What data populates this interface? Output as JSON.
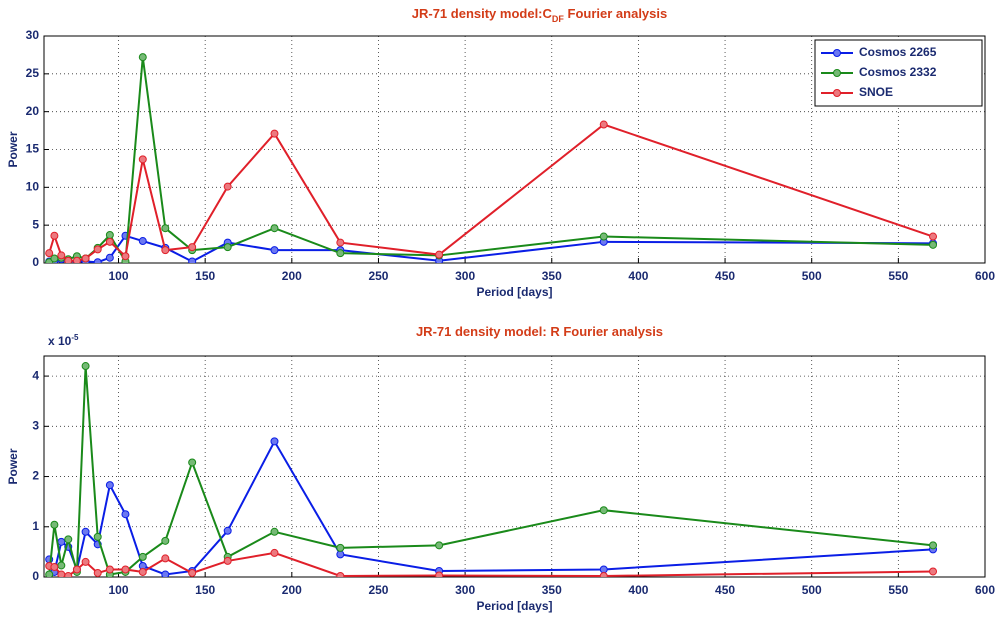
{
  "chart_data": [
    {
      "type": "line",
      "title": "JR-71 density model:C",
      "title_subscript": "DF",
      "title_suffix": " Fourier analysis",
      "xlabel": "Period [days]",
      "ylabel": "Power",
      "x": [
        60,
        63,
        67,
        71,
        76,
        81,
        88,
        95,
        104,
        114,
        127,
        142.5,
        163,
        190,
        228,
        285,
        380,
        570
      ],
      "xlim": [
        57,
        600
      ],
      "xticks": [
        100,
        150,
        200,
        250,
        300,
        350,
        400,
        450,
        500,
        550,
        600
      ],
      "ylim": [
        0,
        30
      ],
      "yticks": [
        0,
        5,
        10,
        15,
        20,
        25,
        30
      ],
      "grid": true,
      "legend": "top-right",
      "series": [
        {
          "name": "Cosmos 2265",
          "color": "#0a1ee6",
          "values": [
            0.2,
            0.3,
            0.5,
            0.3,
            0.2,
            0.2,
            0.1,
            0.7,
            3.6,
            2.9,
            2.0,
            0.2,
            2.7,
            1.7,
            1.7,
            0.3,
            2.8,
            2.6
          ]
        },
        {
          "name": "Cosmos 2332",
          "color": "#1a8a1a",
          "values": [
            0.1,
            0.6,
            0.7,
            0.5,
            0.9,
            0.6,
            2.0,
            3.7,
            0.2,
            27.2,
            4.6,
            1.7,
            2.1,
            4.6,
            1.3,
            1.0,
            3.5,
            2.4
          ]
        },
        {
          "name": "SNOE",
          "color": "#e0202a",
          "values": [
            1.3,
            3.6,
            1.0,
            0.3,
            0.3,
            0.6,
            1.8,
            2.8,
            0.9,
            13.7,
            1.7,
            2.1,
            10.1,
            17.1,
            2.7,
            1.1,
            18.3,
            3.5
          ]
        }
      ]
    },
    {
      "type": "line",
      "title": "JR-71 density model: R Fourier analysis",
      "xlabel": "Period [days]",
      "ylabel": "Power",
      "y_multiplier": "x 10",
      "y_multiplier_exp": "-5",
      "x": [
        60,
        63,
        67,
        71,
        76,
        81,
        88,
        95,
        104,
        114,
        127,
        142.5,
        163,
        190,
        228,
        285,
        380,
        570
      ],
      "xlim": [
        57,
        600
      ],
      "xticks": [
        100,
        150,
        200,
        250,
        300,
        350,
        400,
        450,
        500,
        550,
        600
      ],
      "ylim": [
        0,
        4.4
      ],
      "yticks": [
        0,
        1,
        2,
        3,
        4
      ],
      "grid": true,
      "series": [
        {
          "name": "Cosmos 2265",
          "color": "#0a1ee6",
          "values": [
            0.35,
            0.1,
            0.7,
            0.6,
            0.15,
            0.9,
            0.65,
            1.83,
            1.25,
            0.22,
            0.05,
            0.12,
            0.92,
            2.7,
            0.45,
            0.12,
            0.15,
            0.55
          ]
        },
        {
          "name": "Cosmos 2332",
          "color": "#1a8a1a",
          "values": [
            0.05,
            1.04,
            0.23,
            0.75,
            0.1,
            4.2,
            0.8,
            0.05,
            0.1,
            0.4,
            0.72,
            2.28,
            0.4,
            0.9,
            0.58,
            0.63,
            1.33,
            0.63
          ]
        },
        {
          "name": "SNOE",
          "color": "#e0202a",
          "values": [
            0.22,
            0.2,
            0.05,
            0.02,
            0.15,
            0.3,
            0.08,
            0.15,
            0.15,
            0.1,
            0.37,
            0.08,
            0.32,
            0.48,
            0.02,
            0.03,
            0.02,
            0.11
          ]
        }
      ]
    }
  ]
}
